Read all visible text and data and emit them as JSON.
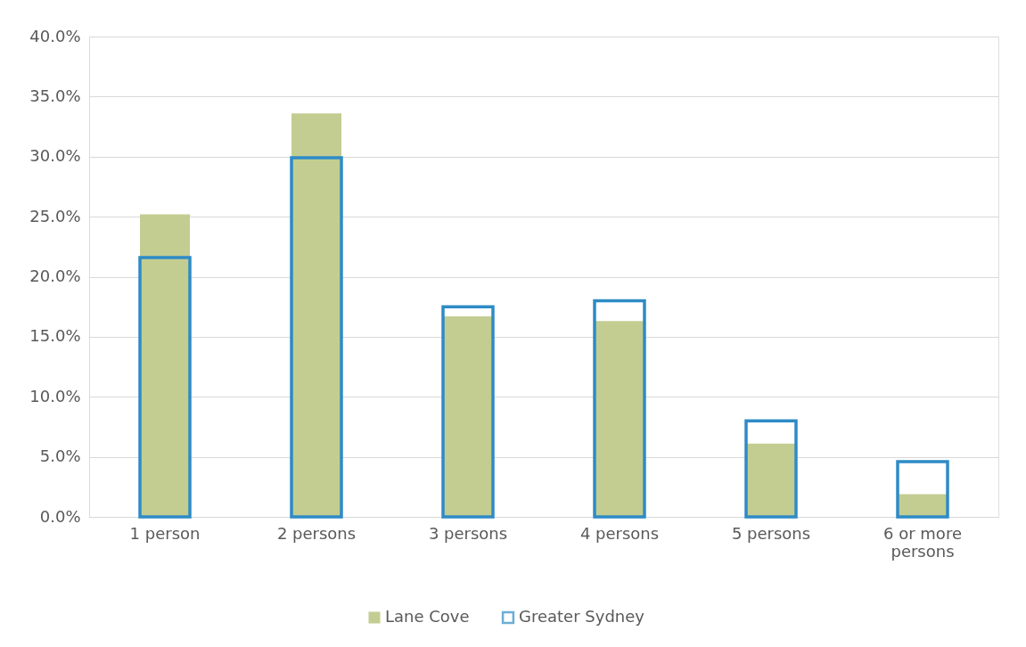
{
  "chart_data": {
    "type": "bar",
    "categories": [
      "1 person",
      "2 persons",
      "3 persons",
      "4 persons",
      "5 persons",
      "6 or more persons"
    ],
    "series": [
      {
        "name": "Lane Cove",
        "color": "#c3cd91",
        "values": [
          25.2,
          33.6,
          16.7,
          16.3,
          6.1,
          1.9
        ]
      },
      {
        "name": "Greater Sydney",
        "color": "#2e8bc6",
        "values": [
          21.6,
          29.9,
          17.5,
          18.0,
          8.0,
          4.6
        ]
      }
    ],
    "ylim": [
      0,
      40
    ],
    "yticks": [
      {
        "value": 0,
        "label": "0.0%"
      },
      {
        "value": 5,
        "label": "5.0%"
      },
      {
        "value": 10,
        "label": "10.0%"
      },
      {
        "value": 15,
        "label": "15.0%"
      },
      {
        "value": 20,
        "label": "20.0%"
      },
      {
        "value": 25,
        "label": "25.0%"
      },
      {
        "value": 30,
        "label": "30.0%"
      },
      {
        "value": 35,
        "label": "35.0%"
      },
      {
        "value": 40,
        "label": "40.0%"
      }
    ],
    "grid": "y",
    "legend": "bottom"
  }
}
